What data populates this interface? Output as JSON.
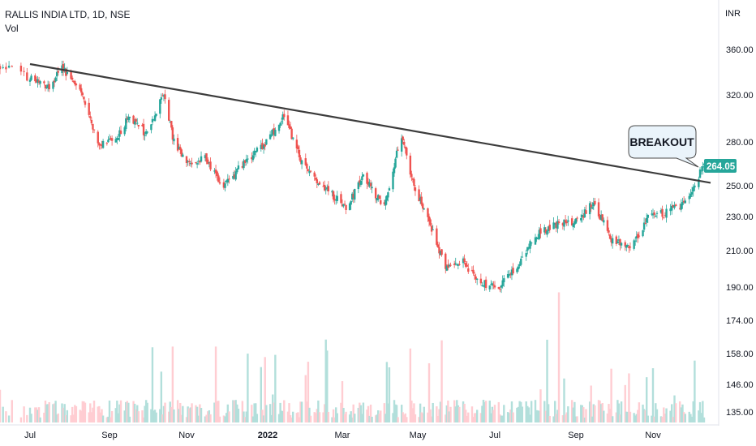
{
  "legend": {
    "symbol": "RALLIS INDIA LTD, 1D, NSE",
    "volume": "Vol"
  },
  "currency": "INR",
  "last_price": "264.05",
  "annotation": "BREAKOUT",
  "colors": {
    "up": "#26a69a",
    "down": "#ef5350",
    "up_volume": "#b2dfdb",
    "down_volume": "#ffcdd2",
    "trendline": "#3c3c3c",
    "price_tag": "#26a69a",
    "callout_fill": "#eaf4fb",
    "axis_text": "#131722"
  },
  "chart_data": {
    "type": "candlestick",
    "title": "RALLIS INDIA LTD, 1D, NSE",
    "y_axis": {
      "unit": "INR",
      "scale": "log",
      "ticks": [
        "360.00",
        "320.00",
        "280.00",
        "250.00",
        "230.00",
        "210.00",
        "190.00",
        "174.00",
        "158.00",
        "146.00",
        "135.00"
      ]
    },
    "x_axis": {
      "ticks": [
        "Jul",
        "Sep",
        "Nov",
        "2022",
        "Mar",
        "May",
        "Jul",
        "Sep",
        "Nov"
      ]
    },
    "price_path": [
      {
        "date": "2021-06-21",
        "close": 345
      },
      {
        "date": "2021-07-01",
        "close": 333
      },
      {
        "date": "2021-07-15",
        "close": 325
      },
      {
        "date": "2021-07-26",
        "close": 342
      },
      {
        "date": "2021-08-10",
        "close": 318
      },
      {
        "date": "2021-08-24",
        "close": 277
      },
      {
        "date": "2021-09-06",
        "close": 283
      },
      {
        "date": "2021-09-17",
        "close": 300
      },
      {
        "date": "2021-09-30",
        "close": 286
      },
      {
        "date": "2021-10-14",
        "close": 320
      },
      {
        "date": "2021-10-21",
        "close": 283
      },
      {
        "date": "2021-11-01",
        "close": 263
      },
      {
        "date": "2021-11-15",
        "close": 268
      },
      {
        "date": "2021-11-29",
        "close": 248
      },
      {
        "date": "2021-12-14",
        "close": 265
      },
      {
        "date": "2021-12-31",
        "close": 280
      },
      {
        "date": "2022-01-14",
        "close": 300
      },
      {
        "date": "2022-01-28",
        "close": 264
      },
      {
        "date": "2022-02-14",
        "close": 248
      },
      {
        "date": "2022-03-04",
        "close": 235
      },
      {
        "date": "2022-03-18",
        "close": 255
      },
      {
        "date": "2022-04-04",
        "close": 235
      },
      {
        "date": "2022-04-18",
        "close": 285
      },
      {
        "date": "2022-04-25",
        "close": 255
      },
      {
        "date": "2022-05-09",
        "close": 228
      },
      {
        "date": "2022-05-23",
        "close": 200
      },
      {
        "date": "2022-06-06",
        "close": 203
      },
      {
        "date": "2022-06-20",
        "close": 192
      },
      {
        "date": "2022-07-04",
        "close": 190
      },
      {
        "date": "2022-07-18",
        "close": 200
      },
      {
        "date": "2022-08-01",
        "close": 218
      },
      {
        "date": "2022-08-16",
        "close": 225
      },
      {
        "date": "2022-09-01",
        "close": 226
      },
      {
        "date": "2022-09-15",
        "close": 238
      },
      {
        "date": "2022-09-29",
        "close": 215
      },
      {
        "date": "2022-10-14",
        "close": 212
      },
      {
        "date": "2022-10-28",
        "close": 228
      },
      {
        "date": "2022-11-11",
        "close": 232
      },
      {
        "date": "2022-11-28",
        "close": 240
      },
      {
        "date": "2022-12-09",
        "close": 264.05
      }
    ],
    "trendline": [
      {
        "date": "2021-07-01",
        "price": 346
      },
      {
        "date": "2022-12-09",
        "price": 251
      }
    ]
  }
}
